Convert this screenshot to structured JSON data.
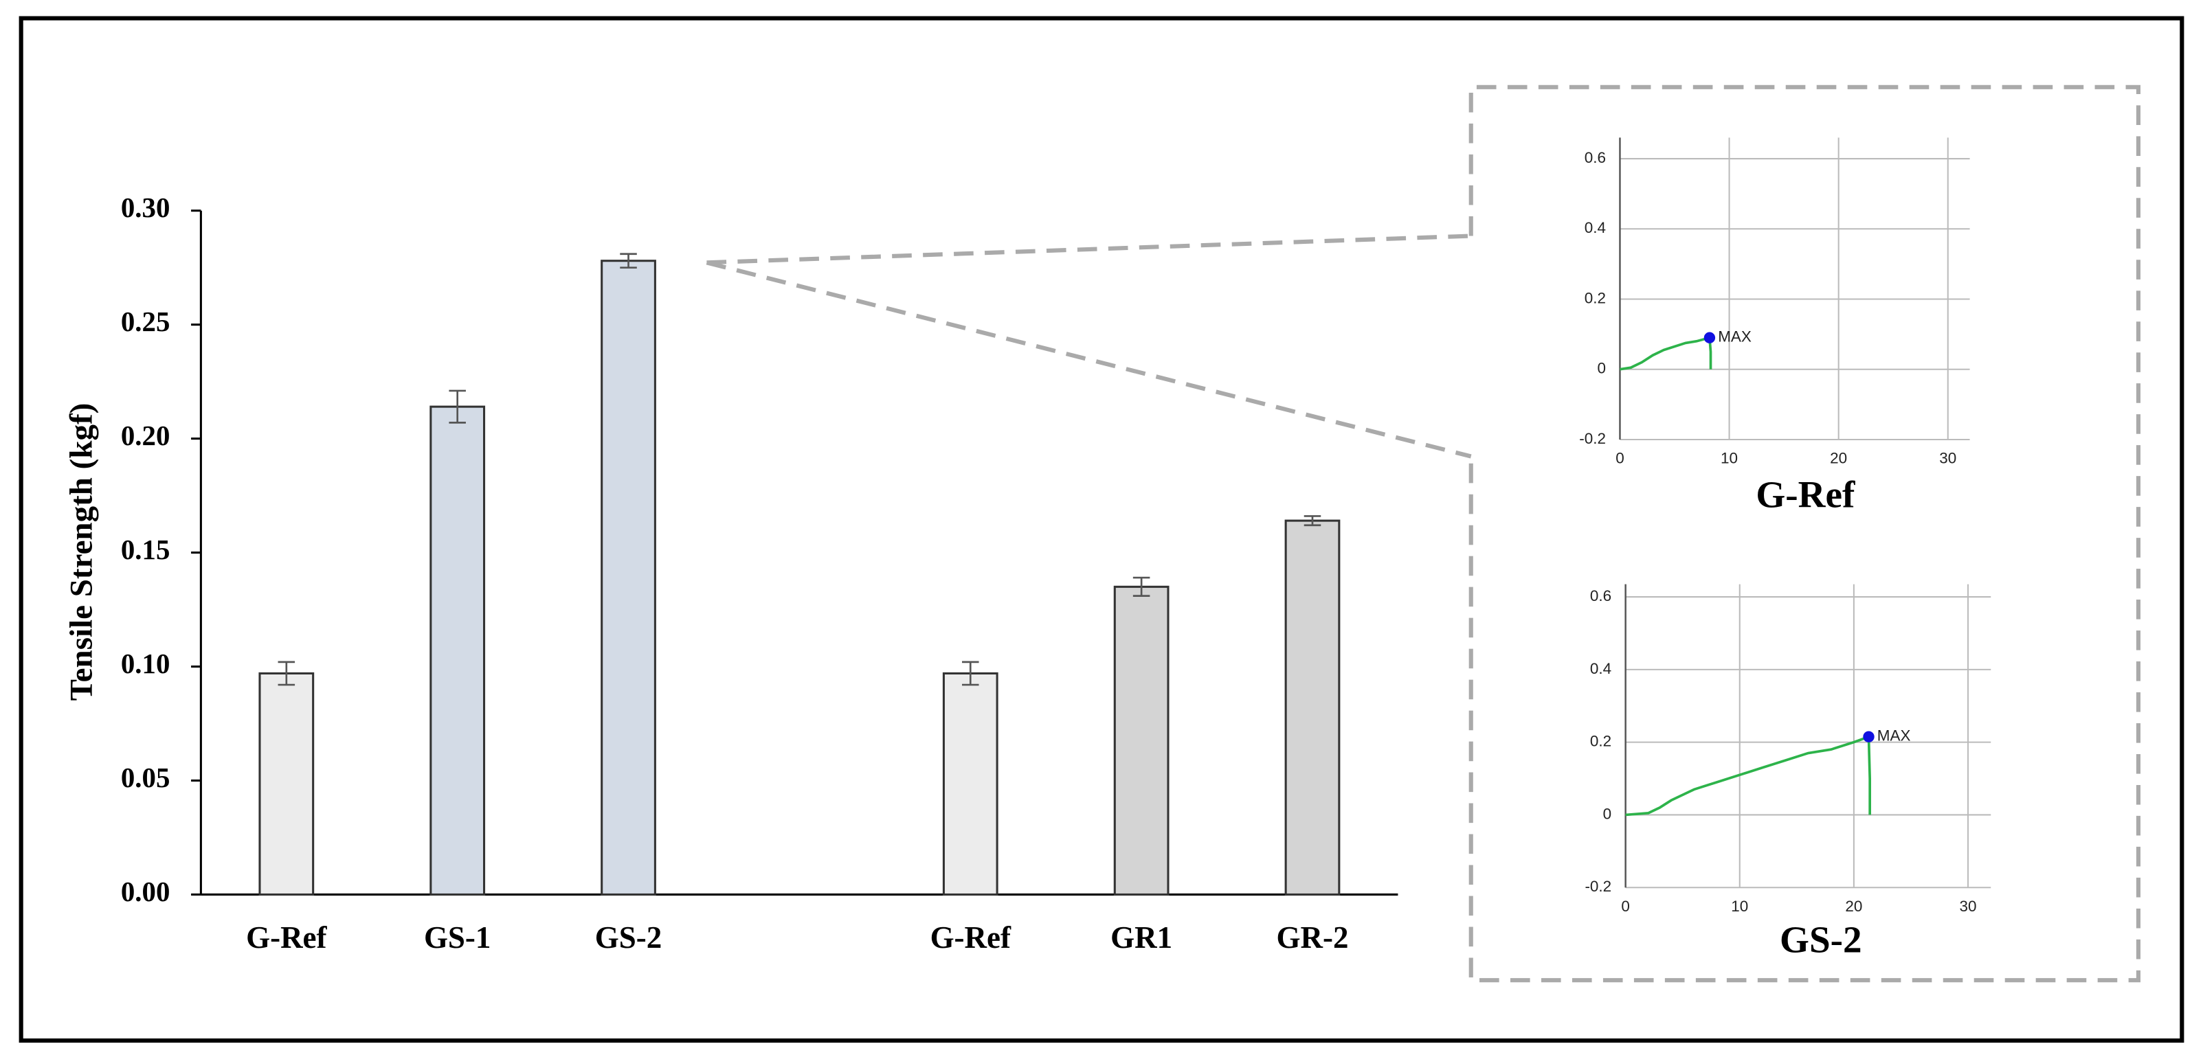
{
  "chart_data": [
    {
      "type": "bar",
      "ylabel": "Tensile Strength (kgf)",
      "categories": [
        "G-Ref",
        "GS-1",
        "GS-2",
        null,
        "G-Ref",
        "GR1",
        "GR-2"
      ],
      "values": [
        0.097,
        0.214,
        0.278,
        null,
        0.097,
        0.135,
        0.164
      ],
      "errors": [
        0.005,
        0.007,
        0.003,
        null,
        0.005,
        0.004,
        0.002
      ],
      "colors": [
        "#ececec",
        "#d3dbe6",
        "#d3dbe6",
        null,
        "#ececec",
        "#d4d4d4",
        "#d4d4d4"
      ],
      "ylim": [
        0,
        0.3
      ],
      "yticks": [
        {
          "value": 0,
          "label": "0.00"
        },
        {
          "value": 0.05,
          "label": "0.05"
        },
        {
          "value": 0.1,
          "label": "0.10"
        },
        {
          "value": 0.15,
          "label": "0.15"
        },
        {
          "value": 0.2,
          "label": "0.20"
        },
        {
          "value": 0.25,
          "label": "0.25"
        },
        {
          "value": 0.3,
          "label": "0.30"
        }
      ]
    },
    {
      "type": "line",
      "title": "G-Ref",
      "x": [
        0,
        1,
        2,
        3,
        4,
        5,
        6,
        7,
        8.2,
        8.3,
        8.3
      ],
      "series": [
        {
          "color": "#2db34a",
          "values": [
            0,
            0.005,
            0.02,
            0.04,
            0.055,
            0.065,
            0.075,
            0.08,
            0.09,
            0.05,
            0
          ]
        }
      ],
      "max_point": {
        "x": 8.2,
        "y": 0.09,
        "label": "MAX",
        "color": "#1010e0"
      },
      "xlim": [
        0,
        32
      ],
      "ylim": [
        -0.2,
        0.66
      ],
      "xticks": [
        0,
        10,
        20,
        30
      ],
      "yticks": [
        -0.2,
        0,
        0.2,
        0.4,
        0.6
      ],
      "grid": true
    },
    {
      "type": "line",
      "title": "GS-2",
      "x": [
        0,
        2,
        3,
        4,
        6,
        8,
        10,
        12,
        14,
        16,
        18,
        20,
        21.3,
        21.4,
        21.4
      ],
      "series": [
        {
          "color": "#2db34a",
          "values": [
            0,
            0.005,
            0.02,
            0.04,
            0.07,
            0.09,
            0.11,
            0.13,
            0.15,
            0.17,
            0.18,
            0.2,
            0.215,
            0.1,
            0
          ]
        }
      ],
      "max_point": {
        "x": 21.3,
        "y": 0.215,
        "label": "MAX",
        "color": "#1010e0"
      },
      "xlim": [
        0,
        32
      ],
      "ylim": [
        -0.2,
        0.635
      ],
      "xticks": [
        0,
        10,
        20,
        30
      ],
      "yticks": [
        -0.2,
        0,
        0.2,
        0.4,
        0.6
      ],
      "grid": true
    }
  ]
}
